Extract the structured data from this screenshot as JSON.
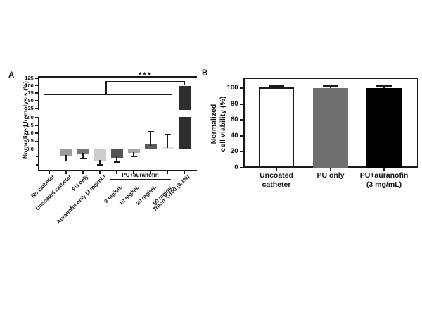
{
  "chart_data": [
    {
      "panel": "A",
      "type": "bar",
      "ylabel": "Normalized hemolysis (%)",
      "axis_break": true,
      "upper_ticks": [
        25,
        50,
        75,
        100,
        125
      ],
      "lower_tick_values": [
        0,
        0.5,
        1,
        1.5,
        2
      ],
      "lower_tick_labels": [
        "0.0",
        "0.5",
        "1.0",
        "1.5",
        "2.0"
      ],
      "minor_ticks": [
        -0.5,
        -1
      ],
      "upper_range": [
        17,
        132
      ],
      "lower_range": [
        -1.35,
        2.45
      ],
      "zero_line_dotted": true,
      "categories": [
        "No catheter",
        "Uncoated catheter",
        "PU only",
        "Auranofin only (3 mg/mL)",
        "3 mg/mL",
        "10 mg/mL",
        "30 mg/mL",
        "60 mg/mL",
        "Triton X-100 (0.1%)"
      ],
      "values": [
        0,
        -0.45,
        -0.35,
        -0.8,
        -0.55,
        -0.25,
        0.3,
        0.15,
        100
      ],
      "errors": [
        0,
        0.35,
        0.3,
        0.25,
        0.3,
        0.25,
        0.75,
        0.75,
        0
      ],
      "bar_colors": [
        "none",
        "#9b9b9b",
        "#757575",
        "#cccccc",
        "#555555",
        "#a6a6a6",
        "#5c5c5c",
        "#e2e2e2",
        "#2d2d2d"
      ],
      "group_annotation": {
        "label": "PU+auranofin",
        "members": [
          "3 mg/mL",
          "10 mg/mL",
          "30 mg/mL",
          "60 mg/mL"
        ]
      },
      "significance": {
        "label": "***",
        "comparison": "all other groups vs Triton X-100 (0.1%)"
      }
    },
    {
      "panel": "B",
      "type": "bar",
      "ylabel_lines": [
        "Normalized",
        "cell viability (%)"
      ],
      "yticks": [
        0,
        20,
        40,
        60,
        80,
        100
      ],
      "ylim": [
        0,
        113
      ],
      "categories": [
        [
          "Uncoated",
          "catheter"
        ],
        [
          "PU only"
        ],
        [
          "PU+auranofin",
          "(3 mg/mL)"
        ]
      ],
      "values": [
        100.8,
        100.2,
        100
      ],
      "errors": [
        2,
        2.5,
        2.5
      ],
      "bar_colors": [
        "#ffffff",
        "#6e6e6e",
        "#000000"
      ]
    }
  ]
}
